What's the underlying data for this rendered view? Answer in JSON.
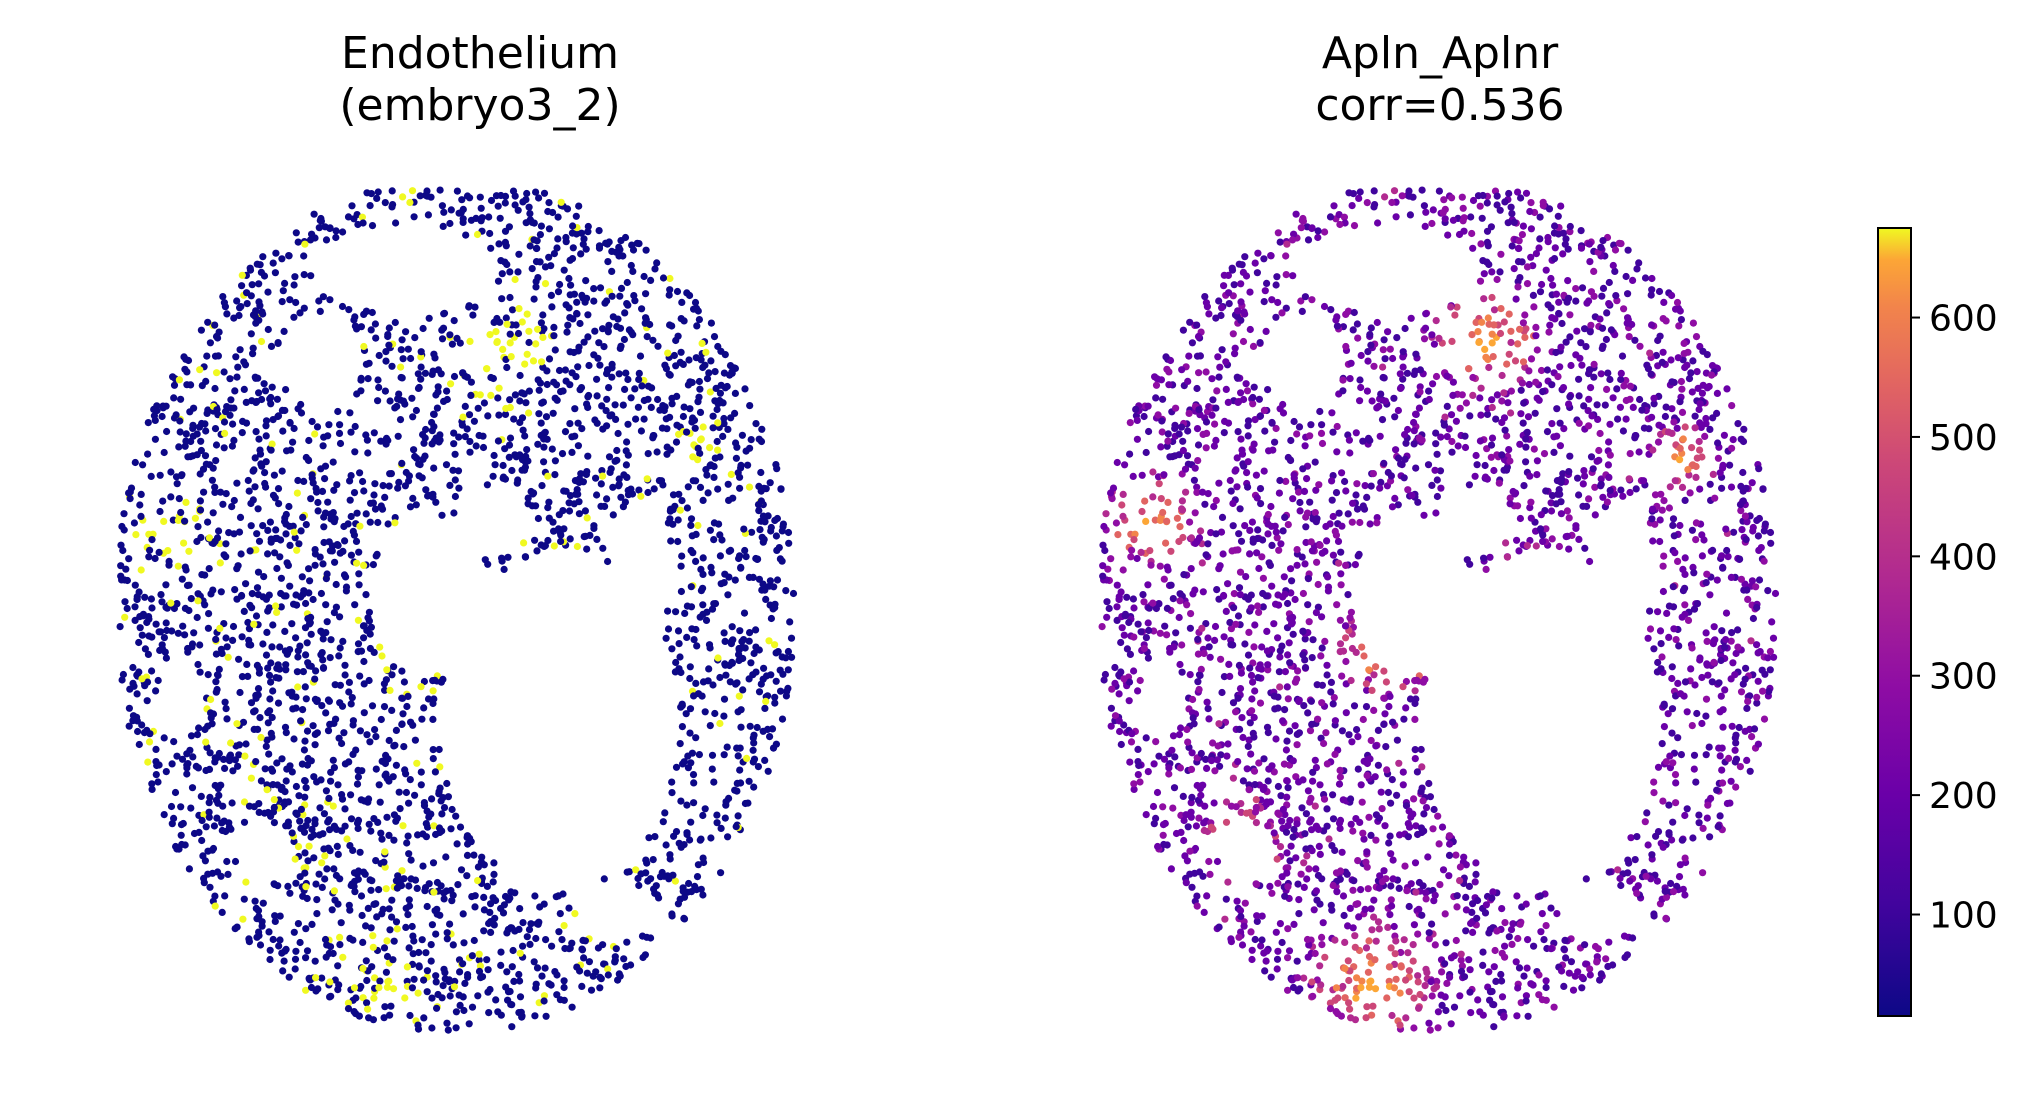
{
  "chart_data": [
    {
      "type": "scatter",
      "title_lines": [
        "Endothelium",
        "(embryo3_2)"
      ],
      "palette": {
        "background_cells": "#0d0887",
        "endothelium_cells": "#f0f921"
      },
      "axes_visible": false
    },
    {
      "type": "scatter",
      "title_lines": [
        "Apln_Aplnr",
        "corr=0.536"
      ],
      "colormap": "plasma",
      "colorbar": {
        "min": 15,
        "max": 675,
        "ticks": [
          100,
          200,
          300,
          400,
          500,
          600
        ]
      },
      "axes_visible": false
    }
  ]
}
